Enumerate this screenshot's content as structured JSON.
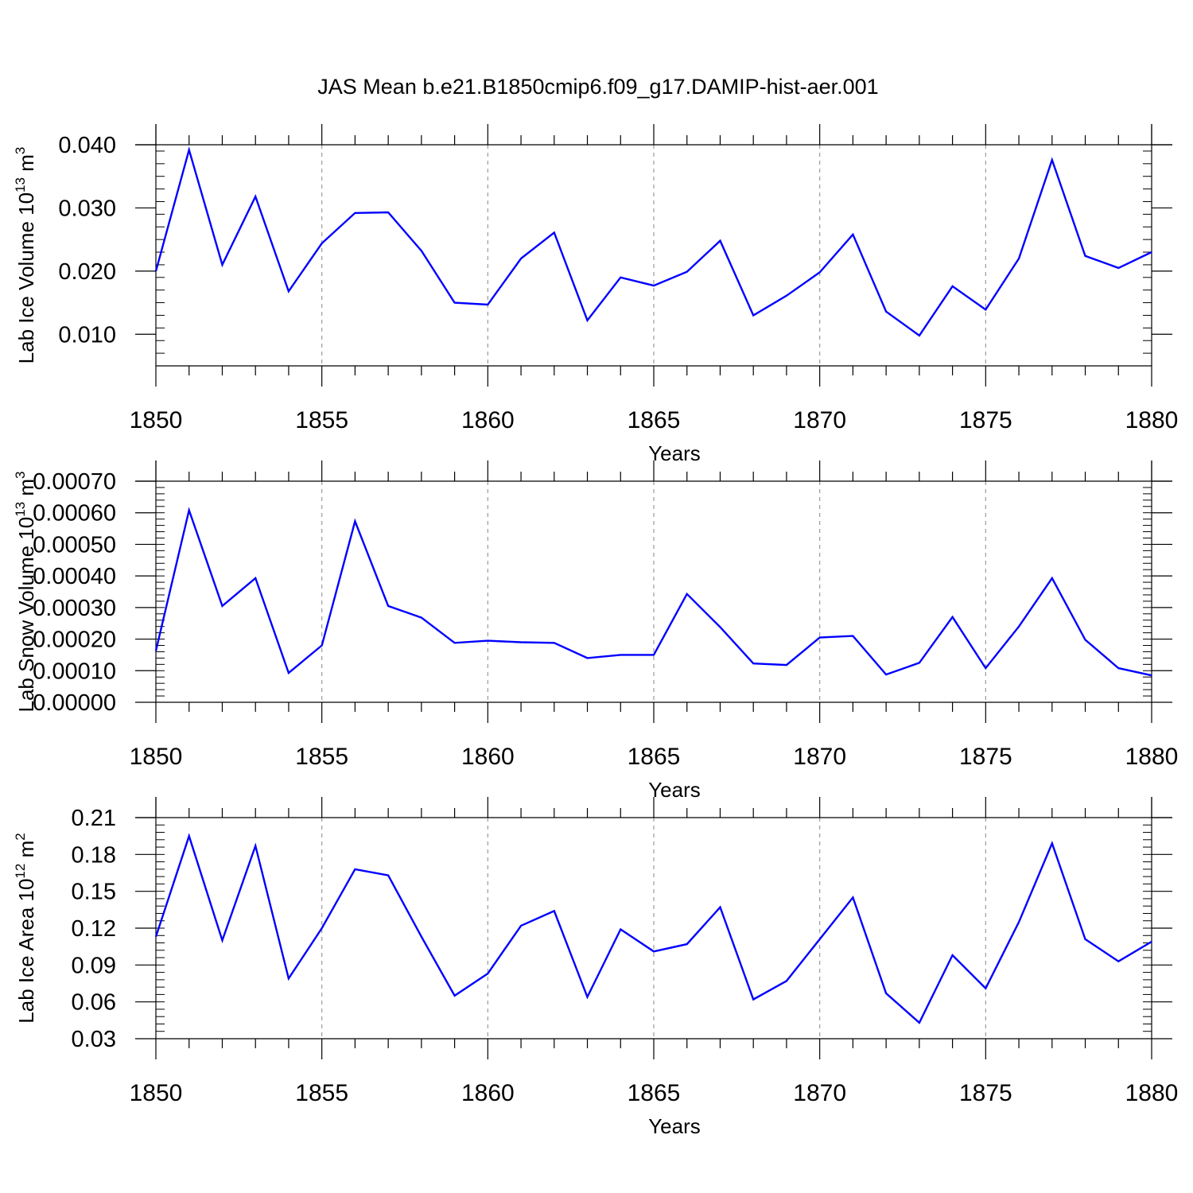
{
  "title": "JAS Mean b.e21.B1850cmip6.f09_g17.DAMIP-hist-aer.001",
  "colors": {
    "line": "#0000ff",
    "axis": "#000000",
    "grid": "#999999"
  },
  "chart_data": [
    {
      "type": "line",
      "ylabel_main": "Lab Ice Volume 10",
      "ylabel_sup": "13",
      "ylabel_unit": " m",
      "ylabel_unit_sup": "3",
      "xlabel": "Years",
      "xlim": [
        1850,
        1880
      ],
      "ylim": [
        0.005,
        0.04
      ],
      "yticks": [
        0.01,
        0.02,
        0.03,
        0.04
      ],
      "ytick_labels": [
        "0.010",
        "0.020",
        "0.030",
        "0.040"
      ],
      "xticks": [
        1850,
        1855,
        1860,
        1865,
        1870,
        1875,
        1880
      ],
      "xtick_labels": [
        "1850",
        "1855",
        "1860",
        "1865",
        "1870",
        "1875",
        "1880"
      ],
      "x": [
        1850,
        1851,
        1852,
        1853,
        1854,
        1855,
        1856,
        1857,
        1858,
        1859,
        1860,
        1861,
        1862,
        1863,
        1864,
        1865,
        1866,
        1867,
        1868,
        1869,
        1870,
        1871,
        1872,
        1873,
        1874,
        1875,
        1876,
        1877,
        1878,
        1879,
        1880
      ],
      "series": [
        {
          "name": "Lab Ice Volume",
          "values": [
            0.02,
            0.0392,
            0.021,
            0.0318,
            0.0168,
            0.0244,
            0.0292,
            0.0293,
            0.0232,
            0.015,
            0.0147,
            0.022,
            0.0261,
            0.0122,
            0.019,
            0.0177,
            0.0199,
            0.0248,
            0.013,
            0.0161,
            0.0198,
            0.0258,
            0.0136,
            0.0098,
            0.0176,
            0.0139,
            0.022,
            0.0376,
            0.0224,
            0.0205,
            0.023
          ]
        }
      ]
    },
    {
      "type": "line",
      "ylabel_main": "Lab Snow Volume 10",
      "ylabel_sup": "13",
      "ylabel_unit": " m",
      "ylabel_unit_sup": "3",
      "xlabel": "Years",
      "xlim": [
        1850,
        1880
      ],
      "ylim": [
        0.0,
        0.0007
      ],
      "yticks": [
        0.0,
        0.0001,
        0.0002,
        0.0003,
        0.0004,
        0.0005,
        0.0006,
        0.0007
      ],
      "ytick_labels": [
        "0.00000",
        "0.00010",
        "0.00020",
        "0.00030",
        "0.00040",
        "0.00050",
        "0.00060",
        "0.00070"
      ],
      "xticks": [
        1850,
        1855,
        1860,
        1865,
        1870,
        1875,
        1880
      ],
      "xtick_labels": [
        "1850",
        "1855",
        "1860",
        "1865",
        "1870",
        "1875",
        "1880"
      ],
      "x": [
        1850,
        1851,
        1852,
        1853,
        1854,
        1855,
        1856,
        1857,
        1858,
        1859,
        1860,
        1861,
        1862,
        1863,
        1864,
        1865,
        1866,
        1867,
        1868,
        1869,
        1870,
        1871,
        1872,
        1873,
        1874,
        1875,
        1876,
        1877,
        1878,
        1879,
        1880
      ],
      "series": [
        {
          "name": "Lab Snow Volume",
          "values": [
            0.000163,
            0.000608,
            0.000305,
            0.000393,
            9.3e-05,
            0.00018,
            0.000573,
            0.000305,
            0.000268,
            0.000188,
            0.000195,
            0.00019,
            0.000188,
            0.00014,
            0.00015,
            0.00015,
            0.000343,
            0.000238,
            0.000123,
            0.000118,
            0.000205,
            0.00021,
            8.8e-05,
            0.000125,
            0.00027,
            0.000108,
            0.00024,
            0.000393,
            0.000198,
            0.000108,
            8.5e-05
          ]
        }
      ]
    },
    {
      "type": "line",
      "ylabel_main": "Lab Ice Area 10",
      "ylabel_sup": "12",
      "ylabel_unit": " m",
      "ylabel_unit_sup": "2",
      "xlabel": "Years",
      "xlim": [
        1850,
        1880
      ],
      "ylim": [
        0.03,
        0.21
      ],
      "yticks": [
        0.03,
        0.06,
        0.09,
        0.12,
        0.15,
        0.18,
        0.21
      ],
      "ytick_labels": [
        "0.03",
        "0.06",
        "0.09",
        "0.12",
        "0.15",
        "0.18",
        "0.21"
      ],
      "xticks": [
        1850,
        1855,
        1860,
        1865,
        1870,
        1875,
        1880
      ],
      "xtick_labels": [
        "1850",
        "1855",
        "1860",
        "1865",
        "1870",
        "1875",
        "1880"
      ],
      "x": [
        1850,
        1851,
        1852,
        1853,
        1854,
        1855,
        1856,
        1857,
        1858,
        1859,
        1860,
        1861,
        1862,
        1863,
        1864,
        1865,
        1866,
        1867,
        1868,
        1869,
        1870,
        1871,
        1872,
        1873,
        1874,
        1875,
        1876,
        1877,
        1878,
        1879,
        1880
      ],
      "series": [
        {
          "name": "Lab Ice Area",
          "values": [
            0.113,
            0.195,
            0.11,
            0.187,
            0.079,
            0.12,
            0.168,
            0.163,
            0.113,
            0.065,
            0.083,
            0.122,
            0.134,
            0.064,
            0.119,
            0.101,
            0.107,
            0.137,
            0.062,
            0.077,
            0.111,
            0.145,
            0.067,
            0.043,
            0.098,
            0.071,
            0.125,
            0.189,
            0.111,
            0.093,
            0.109
          ]
        }
      ]
    }
  ]
}
